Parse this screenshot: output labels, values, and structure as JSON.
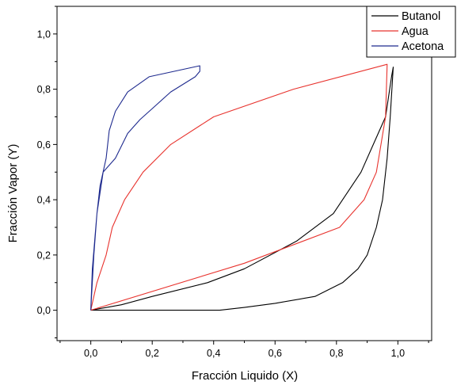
{
  "chart_data": {
    "type": "line",
    "title": "",
    "xlabel": "Fracción Liquido (X)",
    "ylabel": "Fracción Vapor (Y)",
    "xlim": [
      -0.11,
      1.11
    ],
    "ylim": [
      -0.11,
      1.1
    ],
    "x_ticks": [
      0.0,
      0.2,
      0.4,
      0.6,
      0.8,
      1.0
    ],
    "x_tick_labels": [
      "0,0",
      "0,2",
      "0,4",
      "0,6",
      "0,8",
      "1,0"
    ],
    "y_ticks": [
      0.0,
      0.2,
      0.4,
      0.6,
      0.8,
      1.0
    ],
    "y_tick_labels": [
      "0,0",
      "0,2",
      "0,4",
      "0,6",
      "0,8",
      "1,0"
    ],
    "grid": false,
    "legend_position": "top-right",
    "series": [
      {
        "name": "Butanol",
        "color": "#000000",
        "points": [
          [
            0.0,
            0.0
          ],
          [
            0.12,
            0.0
          ],
          [
            0.3,
            0.0
          ],
          [
            0.42,
            0.0
          ],
          [
            0.5,
            0.01
          ],
          [
            0.6,
            0.025
          ],
          [
            0.73,
            0.05
          ],
          [
            0.82,
            0.1
          ],
          [
            0.87,
            0.15
          ],
          [
            0.9,
            0.2
          ],
          [
            0.93,
            0.3
          ],
          [
            0.95,
            0.4
          ],
          [
            0.965,
            0.55
          ],
          [
            0.975,
            0.7
          ],
          [
            0.985,
            0.88
          ],
          [
            0.98,
            0.85
          ],
          [
            0.96,
            0.7
          ],
          [
            0.92,
            0.6
          ],
          [
            0.88,
            0.5
          ],
          [
            0.79,
            0.35
          ],
          [
            0.67,
            0.25
          ],
          [
            0.5,
            0.15
          ],
          [
            0.38,
            0.1
          ],
          [
            0.2,
            0.05
          ],
          [
            0.1,
            0.02
          ],
          [
            0.0,
            0.0
          ]
        ]
      },
      {
        "name": "Agua",
        "color": "#e8332e",
        "points": [
          [
            0.0,
            0.0
          ],
          [
            0.02,
            0.1
          ],
          [
            0.05,
            0.2
          ],
          [
            0.07,
            0.3
          ],
          [
            0.11,
            0.4
          ],
          [
            0.17,
            0.5
          ],
          [
            0.26,
            0.6
          ],
          [
            0.4,
            0.7
          ],
          [
            0.66,
            0.8
          ],
          [
            0.965,
            0.89
          ],
          [
            0.96,
            0.7
          ],
          [
            0.93,
            0.5
          ],
          [
            0.89,
            0.4
          ],
          [
            0.81,
            0.3
          ],
          [
            0.5,
            0.17
          ],
          [
            0.0,
            0.0
          ]
        ]
      },
      {
        "name": "Acetona",
        "color": "#1e2a8e",
        "points": [
          [
            0.0,
            0.0
          ],
          [
            0.01,
            0.2
          ],
          [
            0.02,
            0.35
          ],
          [
            0.03,
            0.45
          ],
          [
            0.05,
            0.55
          ],
          [
            0.06,
            0.65
          ],
          [
            0.08,
            0.72
          ],
          [
            0.12,
            0.79
          ],
          [
            0.19,
            0.845
          ],
          [
            0.355,
            0.885
          ],
          [
            0.355,
            0.865
          ],
          [
            0.34,
            0.845
          ],
          [
            0.26,
            0.79
          ],
          [
            0.21,
            0.74
          ],
          [
            0.16,
            0.69
          ],
          [
            0.12,
            0.64
          ],
          [
            0.08,
            0.55
          ],
          [
            0.04,
            0.5
          ],
          [
            0.02,
            0.35
          ],
          [
            0.005,
            0.15
          ],
          [
            0.0,
            0.0
          ]
        ]
      }
    ]
  }
}
